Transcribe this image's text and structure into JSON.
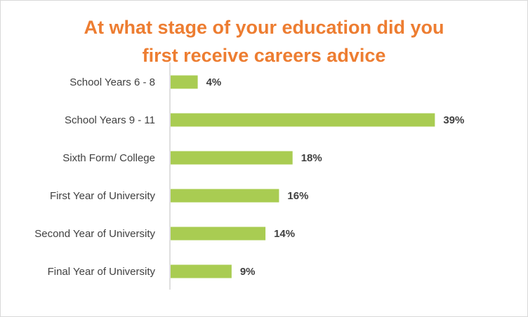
{
  "chart_data": {
    "type": "bar",
    "orientation": "horizontal",
    "title_lines": [
      "At what stage of your education did you",
      "first receive careers advice"
    ],
    "categories": [
      "School Years 6 - 8",
      "School Years 9 - 11",
      "Sixth Form/ College",
      "First Year of University",
      "Second Year of University",
      "Final Year of University"
    ],
    "values": [
      4,
      39,
      18,
      16,
      14,
      9
    ],
    "value_labels": [
      "4%",
      "39%",
      "18%",
      "16%",
      "14%",
      "9%"
    ],
    "xlim": [
      0,
      42
    ],
    "grid": false,
    "legend": "none",
    "bar_color": "#a9cc52",
    "title_color": "#ed7d31"
  }
}
